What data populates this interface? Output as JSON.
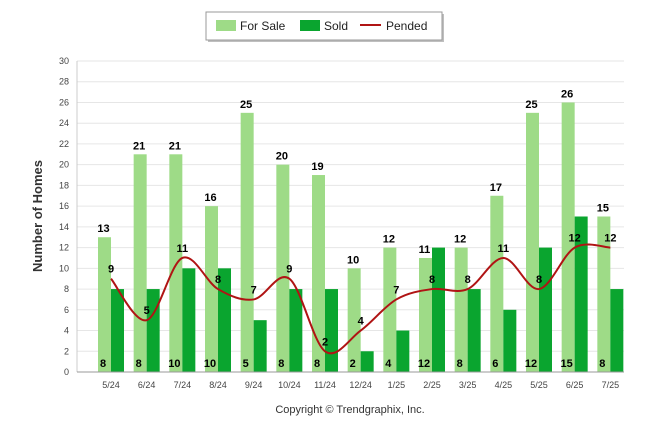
{
  "chart_data": {
    "type": "bar",
    "categories": [
      "5/24",
      "6/24",
      "7/24",
      "8/24",
      "9/24",
      "10/24",
      "11/24",
      "12/24",
      "1/25",
      "2/25",
      "3/25",
      "4/25",
      "5/25",
      "6/25",
      "7/25"
    ],
    "series": [
      {
        "name": "For Sale",
        "type": "bar",
        "color": "#9edb87",
        "values": [
          13,
          21,
          21,
          16,
          25,
          20,
          19,
          10,
          12,
          11,
          12,
          17,
          25,
          26,
          15
        ]
      },
      {
        "name": "Sold",
        "type": "bar",
        "color": "#0aa52f",
        "values": [
          8,
          8,
          10,
          10,
          5,
          8,
          8,
          2,
          4,
          12,
          8,
          6,
          12,
          15,
          8
        ]
      },
      {
        "name": "Pended",
        "type": "line",
        "color": "#b01414",
        "values": [
          9,
          5,
          11,
          8,
          7,
          9,
          2,
          4,
          7,
          8,
          8,
          11,
          8,
          12,
          12
        ]
      }
    ],
    "ylabel": "Number of Homes",
    "xlabel": "",
    "ylim": [
      0,
      30
    ],
    "yticks": [
      0,
      2,
      4,
      6,
      8,
      10,
      12,
      14,
      16,
      18,
      20,
      22,
      24,
      26,
      28,
      30
    ],
    "grid": true,
    "legend_position": "top-center"
  },
  "footer": "Copyright © Trendgraphix, Inc."
}
